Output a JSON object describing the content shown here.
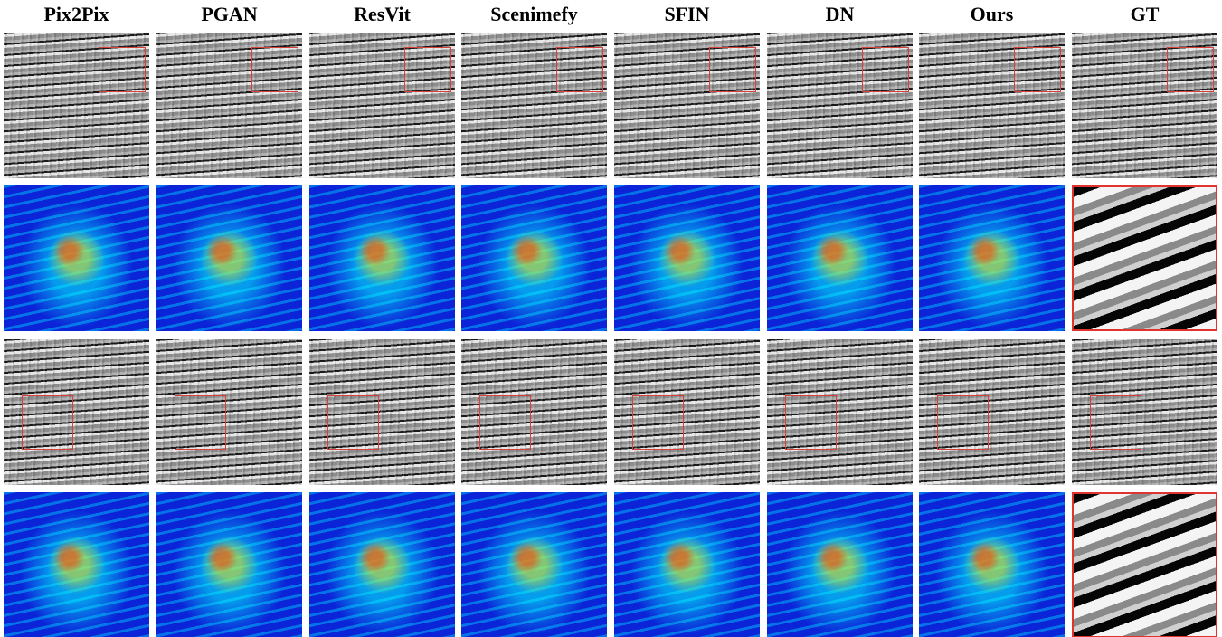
{
  "columns": [
    "Pix2Pix",
    "PGAN",
    "ResVit",
    "Scenimefy",
    "SFIN",
    "DN",
    "Ours",
    "GT"
  ]
}
